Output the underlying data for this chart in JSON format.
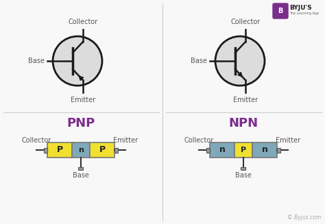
{
  "bg_color": "#f8f8f8",
  "title_pnp": "PNP",
  "title_npn": "NPN",
  "title_color": "#7b2d8b",
  "title_fontsize": 13,
  "label_color": "#555555",
  "label_fontsize": 7,
  "p_color": "#f0e030",
  "n_color": "#7fa8b8",
  "box_edge_color": "#777777",
  "divider_color": "#cccccc",
  "transistor_body_color": "#dcdcdc",
  "transistor_line_color": "#1a1a1a",
  "watermark": "© Byjus.com",
  "watermark_color": "#aaaaaa",
  "logo_bg": "#7b2d8b",
  "logo_text_color": "#ffffff",
  "byju_text_color": "#222222",
  "byju_sub_color": "#666666"
}
